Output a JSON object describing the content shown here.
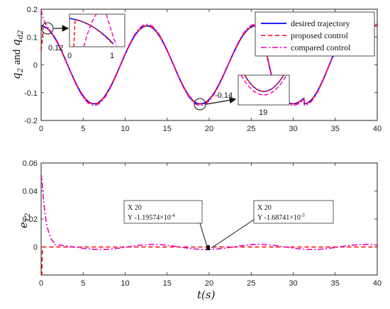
{
  "colors": {
    "desired": "#0000ff",
    "proposed": "#ff0000",
    "compared": "#ee00bb"
  },
  "chart_data": [
    {
      "type": "line",
      "ylabel_main": "q",
      "ylabel_sub1": "2",
      "ylabel_and": "and",
      "ylabel_sub2": "d2",
      "xlim": [
        0,
        40
      ],
      "ylim": [
        -0.2,
        0.2
      ],
      "xticks": [
        "0",
        "5",
        "10",
        "15",
        "20",
        "25",
        "30",
        "35",
        "40"
      ],
      "yticks": [
        "0.2",
        "0.1",
        "0",
        "-0.1",
        "-0.2"
      ],
      "grid": false,
      "legend": "top-right",
      "series": [
        {
          "name": "desired trajectory"
        },
        {
          "name": "proposed control"
        },
        {
          "name": "compared control"
        }
      ],
      "inset1": {
        "xticks": [
          "0",
          "1"
        ],
        "ylabel": "0.12"
      },
      "inset2": {
        "ylabel": "-0.14",
        "xlabel": "19"
      }
    },
    {
      "type": "line",
      "ylabel_main": "e",
      "ylabel_sub": "12",
      "xlabel": "t(s)",
      "xlim": [
        0,
        40
      ],
      "ylim": [
        -0.02,
        0.06
      ],
      "xticks": [
        "0",
        "5",
        "10",
        "15",
        "20",
        "25",
        "30",
        "35",
        "40"
      ],
      "yticks": [
        "0.06",
        "0.04",
        "0.02",
        "0"
      ],
      "grid": false,
      "datatips": [
        {
          "x_label": "X 20",
          "y_prefix": "Y",
          "y_mant": "-1.19574×10",
          "y_exp": "-4"
        },
        {
          "x_label": "X 20",
          "y_prefix": "Y",
          "y_mant": "-1.68741×10",
          "y_exp": "-3"
        }
      ]
    }
  ]
}
